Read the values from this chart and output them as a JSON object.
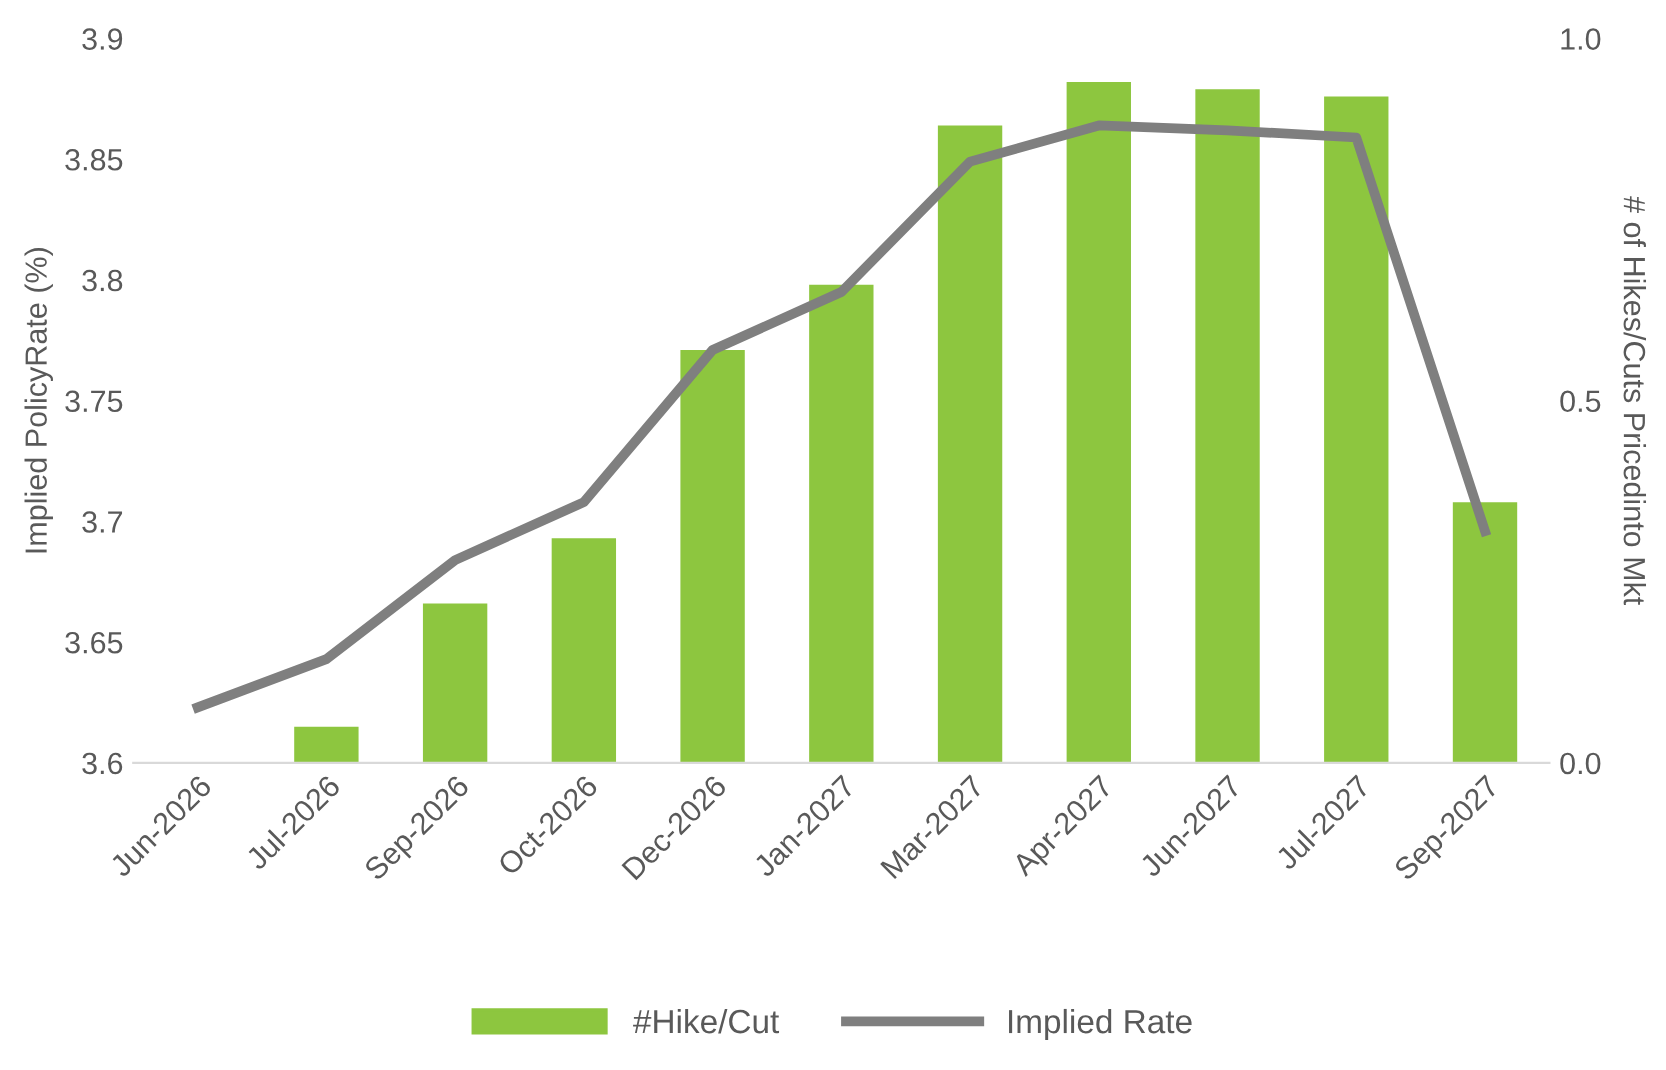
{
  "chart_data": {
    "type": "bar",
    "ylabel": "Implied PolicyRate (%)",
    "y2label": "# of Hikes/Cuts Pricedinto Mkt",
    "categories": [
      "Jun-2026",
      "Jul-2026",
      "Sep-2026",
      "Oct-2026",
      "Dec-2026",
      "Jan-2027",
      "Mar-2027",
      "Apr-2027",
      "Jun-2027",
      "Jul-2027",
      "Sep-2027"
    ],
    "series": [
      {
        "name": "#Hike/Cut",
        "axis": "y2",
        "color": "#8dc63f",
        "values": [
          0.0,
          0.05,
          0.22,
          0.31,
          0.57,
          0.66,
          0.88,
          0.94,
          0.93,
          0.92,
          0.36
        ]
      },
      {
        "name": "Implied Rate",
        "type": "line",
        "axis": "y",
        "color": "#7f7f7f",
        "values": [
          3.623,
          3.643,
          3.684,
          3.708,
          3.771,
          3.795,
          3.849,
          3.864,
          3.862,
          3.859,
          3.696
        ]
      }
    ],
    "ylim": [
      3.6,
      3.9
    ],
    "yticks": [
      3.6,
      3.65,
      3.7,
      3.75,
      3.8,
      3.85,
      3.9
    ],
    "y2lim": [
      0,
      1
    ],
    "y2ticks": [
      {
        "value": 0,
        "label": "0.0"
      },
      {
        "value": 0.5,
        "label": "0.5"
      },
      {
        "value": 1,
        "label": "1.0"
      }
    ],
    "grid": false,
    "legend": "bottom",
    "marker": "none",
    "line_style": "solid"
  }
}
